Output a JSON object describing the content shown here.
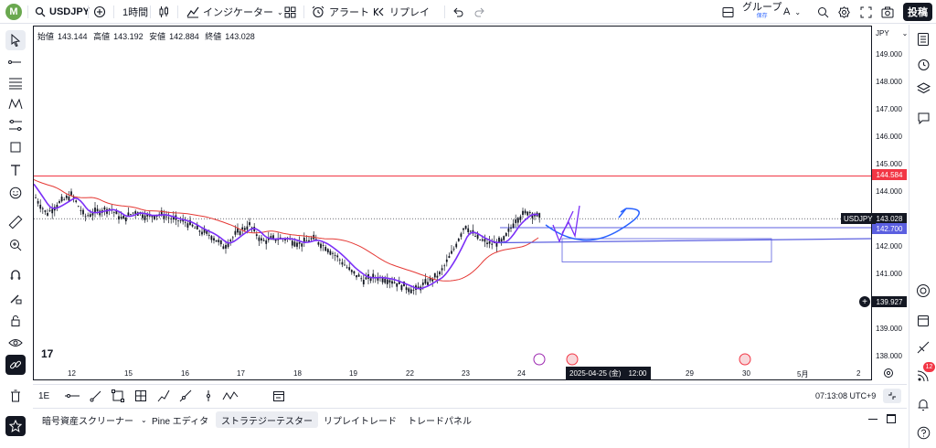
{
  "topbar": {
    "avatar_letter": "M",
    "symbol": "USDJPY",
    "interval": "1時間",
    "indicators": "インジケーター",
    "alert": "アラート",
    "replay": "リプレイ",
    "group_label": "グループ",
    "group_sub": "保存",
    "group_letter": "A",
    "publish": "投稿"
  },
  "chart": {
    "ohlc": {
      "open_label": "始値",
      "open": "143.144",
      "high_label": "高値",
      "high": "143.192",
      "low_label": "安値",
      "low": "142.884",
      "close_label": "終値",
      "close": "143.028"
    },
    "currency": "JPY",
    "price_ticks": [
      "149.000",
      "148.000",
      "147.000",
      "146.000",
      "145.000",
      "144.000",
      "142.000",
      "141.000",
      "139.000",
      "138.000"
    ],
    "tags": {
      "red_line": "144.584",
      "symbol": "USDJPY",
      "last_price": "143.028",
      "blue_line": "142.700",
      "cursor": "139.927"
    },
    "time_ticks": [
      "12",
      "15",
      "16",
      "17",
      "18",
      "19",
      "22",
      "23",
      "24",
      "29",
      "30",
      "5月",
      "2"
    ],
    "crosshair_date": "2025-04-25 (金)",
    "crosshair_time": "12:00",
    "colors": {
      "candles": "#131722",
      "ma_red": "#e53935",
      "ma_purple": "#7b2ff7",
      "drawing_blue": "#2962ff",
      "hline_red": "#f23645",
      "hline_blue": "#5b5fe0"
    }
  },
  "chart_data": {
    "type": "candlestick",
    "symbol": "USDJPY",
    "interval": "1時間",
    "ylim": [
      137.5,
      150.0
    ],
    "x_ticks": [
      "12",
      "15",
      "16",
      "17",
      "18",
      "19",
      "22",
      "23",
      "24",
      "29",
      "30",
      "5月",
      "2"
    ],
    "reference_lines": [
      144.584,
      142.7
    ],
    "last_price": 143.028,
    "approx_close_path": [
      [
        0,
        143.9
      ],
      [
        1,
        143.2
      ],
      [
        2,
        143.6
      ],
      [
        3,
        143.9
      ],
      [
        4,
        143.1
      ],
      [
        5,
        143.3
      ],
      [
        6,
        143.4
      ],
      [
        7,
        143.0
      ],
      [
        8,
        143.3
      ],
      [
        9,
        143.1
      ],
      [
        10,
        143.2
      ],
      [
        11,
        143.0
      ],
      [
        12,
        142.9
      ],
      [
        13,
        142.6
      ],
      [
        14,
        142.4
      ],
      [
        15,
        142.0
      ],
      [
        16,
        142.5
      ],
      [
        17,
        142.8
      ],
      [
        18,
        142.2
      ],
      [
        19,
        142.3
      ],
      [
        20,
        142.3
      ],
      [
        21,
        142.1
      ],
      [
        22,
        142.3
      ],
      [
        23,
        142.0
      ],
      [
        24,
        141.6
      ],
      [
        25,
        141.1
      ],
      [
        26,
        140.8
      ],
      [
        27,
        140.9
      ],
      [
        28,
        140.8
      ],
      [
        29,
        140.6
      ],
      [
        30,
        140.4
      ],
      [
        31,
        140.7
      ],
      [
        32,
        141.0
      ],
      [
        33,
        141.8
      ],
      [
        34,
        142.8
      ],
      [
        35,
        142.3
      ],
      [
        36,
        142.1
      ],
      [
        37,
        142.2
      ],
      [
        38,
        143.0
      ],
      [
        39,
        143.3
      ],
      [
        40,
        143.03
      ]
    ]
  },
  "bottom": {
    "range_label": "1E",
    "time": "07:13:08 UTC+9",
    "tabs": [
      "暗号資産スクリーナー",
      "Pine エディタ",
      "ストラテジーテスター",
      "リプレイトレード",
      "トレードパネル"
    ],
    "active_tab": 2
  },
  "rightbar": {
    "badge": "12"
  }
}
